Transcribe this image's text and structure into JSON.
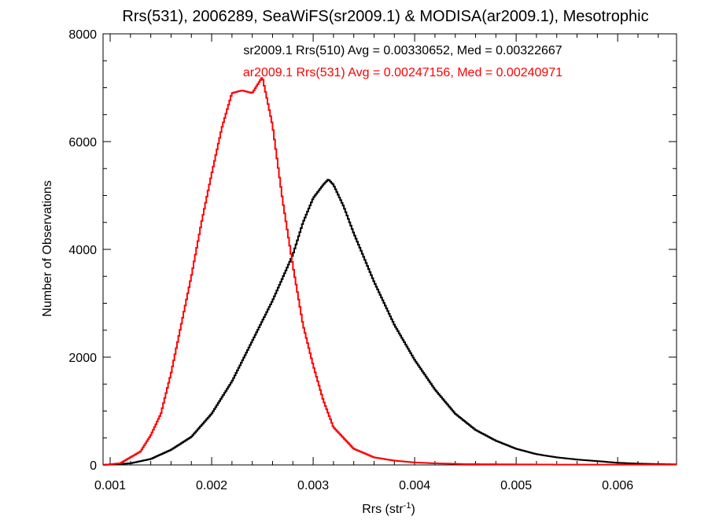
{
  "chart_data": {
    "type": "line",
    "title": "Rrs(531), 2006289, SeaWiFS(sr2009.1) & MODISA(ar2009.1), Mesotrophic",
    "xlabel_base": "Rrs (str",
    "xlabel_sup": "-1",
    "xlabel_close": ")",
    "ylabel": "Number of Observations",
    "xlim": [
      0.00093,
      0.00658
    ],
    "ylim": [
      0,
      8000
    ],
    "grid": false,
    "x_ticks": [
      0.001,
      0.002,
      0.003,
      0.004,
      0.005,
      0.006
    ],
    "x_tick_labels": [
      "0.001",
      "0.002",
      "0.003",
      "0.004",
      "0.005",
      "0.006"
    ],
    "y_ticks": [
      0,
      2000,
      4000,
      6000,
      8000
    ],
    "y_tick_labels": [
      "0",
      "2000",
      "4000",
      "6000",
      "8000"
    ],
    "annotations": [
      {
        "text": "sr2009.1 Rrs(510) Avg = 0.00330652, Med = 0.00322667",
        "color": "#000000"
      },
      {
        "text": "ar2009.1 Rrs(531) Avg = 0.00247156, Med = 0.00240971",
        "color": "#ff0000"
      }
    ],
    "series": [
      {
        "color": "#000000",
        "x": [
          0.00093,
          0.0012,
          0.0014,
          0.0016,
          0.0018,
          0.002,
          0.0022,
          0.0024,
          0.0026,
          0.0028,
          0.0029,
          0.003,
          0.0031,
          0.00315,
          0.0032,
          0.0033,
          0.0034,
          0.0036,
          0.0038,
          0.004,
          0.0042,
          0.0044,
          0.0046,
          0.0048,
          0.005,
          0.0052,
          0.0054,
          0.0056,
          0.0058,
          0.006,
          0.0062,
          0.0064,
          0.00658
        ],
        "y": [
          0,
          30,
          110,
          280,
          520,
          950,
          1550,
          2300,
          3050,
          3900,
          4500,
          4950,
          5200,
          5300,
          5200,
          4800,
          4300,
          3400,
          2600,
          1950,
          1400,
          950,
          650,
          450,
          300,
          200,
          140,
          100,
          70,
          40,
          25,
          15,
          10
        ]
      },
      {
        "color": "#ff0000",
        "x": [
          0.00093,
          0.0011,
          0.0013,
          0.0014,
          0.0015,
          0.0016,
          0.0017,
          0.0018,
          0.0019,
          0.002,
          0.0021,
          0.0022,
          0.0023,
          0.0024,
          0.0025,
          0.0026,
          0.0027,
          0.0028,
          0.0029,
          0.003,
          0.0031,
          0.0032,
          0.0034,
          0.0036,
          0.0038,
          0.004,
          0.0042,
          0.0045,
          0.005,
          0.0055,
          0.006,
          0.00658
        ],
        "y": [
          0,
          30,
          250,
          550,
          950,
          1700,
          2600,
          3500,
          4500,
          5400,
          6250,
          6900,
          6950,
          6900,
          7200,
          6300,
          4900,
          3700,
          2600,
          1850,
          1200,
          700,
          300,
          140,
          80,
          45,
          30,
          15,
          10,
          5,
          5,
          5
        ]
      }
    ]
  }
}
